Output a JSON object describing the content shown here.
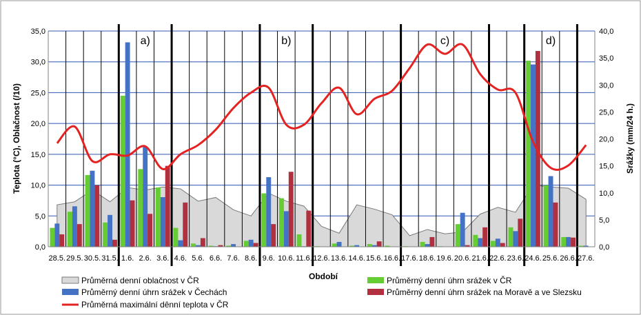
{
  "chart_data": {
    "type": "bar",
    "title": "",
    "xlabel": "Období",
    "ylabel_left": "Teplota (°C), Oblačnost (/10)",
    "ylabel_right": "Srážky (mm/24 h.)",
    "ylim_left": [
      0,
      35
    ],
    "ylim_right": [
      0,
      40
    ],
    "yticks_left": [
      "0,0",
      "5,0",
      "10,0",
      "15,0",
      "20,0",
      "25,0",
      "30,0",
      "35,0"
    ],
    "yticks_right": [
      "0,0",
      "5,0",
      "10,0",
      "15,0",
      "20,0",
      "25,0",
      "30,0",
      "35,0",
      "40,0"
    ],
    "grid": true,
    "legend_position": "bottom",
    "categories": [
      "28.5.",
      "29.5.",
      "30.5.",
      "31.5.",
      "1.6.",
      "2.6.",
      "3.6.",
      "4.6.",
      "5.6.",
      "6.6.",
      "7.6.",
      "8.6.",
      "9.6.",
      "10.6.",
      "11.6.",
      "12.6.",
      "13.6.",
      "14.6.",
      "15.6.",
      "16.6.",
      "17.6.",
      "18.6.",
      "19.6.",
      "20.6.",
      "21.6.",
      "22.6.",
      "23.6.",
      "24.6.",
      "25.6.",
      "26.6.",
      "27.6."
    ],
    "series": [
      {
        "name": "Průměrná denní oblačnost v ČR",
        "kind": "area",
        "axis": "left",
        "color": "#d9d9d9",
        "values": [
          6.8,
          7.3,
          9.2,
          7.3,
          9.6,
          9.2,
          9.7,
          9.4,
          7.4,
          8.0,
          6.0,
          5.0,
          8.7,
          7.4,
          6.6,
          3.3,
          2.2,
          6.8,
          6.1,
          5.2,
          1.8,
          2.8,
          2.1,
          2.4,
          5.3,
          6.4,
          5.6,
          10.0,
          9.7,
          9.5,
          7.7
        ]
      },
      {
        "name": "Průměrný denní úhrn srážek v ČR",
        "kind": "bar",
        "axis": "right",
        "color": "#66cc33",
        "values": [
          3.5,
          6.5,
          13.3,
          4.5,
          28.0,
          14.4,
          11.0,
          3.5,
          0.6,
          0.2,
          0.2,
          1.1,
          9.9,
          9.0,
          2.3,
          0.1,
          0.6,
          0.2,
          0.5,
          0.2,
          0.1,
          0.9,
          0.1,
          4.2,
          2.2,
          1.1,
          3.6,
          34.5,
          11.4,
          1.8,
          0.2
        ]
      },
      {
        "name": "Průměrný denní úhrn srážek v Čechách",
        "kind": "bar",
        "axis": "right",
        "color": "#4472c4",
        "values": [
          4.3,
          7.5,
          14.1,
          5.9,
          37.9,
          18.5,
          9.2,
          1.2,
          0.3,
          0.1,
          0.5,
          1.3,
          12.9,
          6.6,
          0.1,
          0.0,
          0.9,
          0.3,
          0.3,
          0.0,
          0.0,
          0.5,
          0.0,
          6.3,
          1.6,
          1.5,
          2.9,
          33.8,
          13.1,
          1.8,
          0.2
        ]
      },
      {
        "name": "Průměrný denní úhrn srážek na Moravě a ve Slezsku",
        "kind": "bar",
        "axis": "right",
        "color": "#b03040",
        "values": [
          2.3,
          4.2,
          11.4,
          1.3,
          8.6,
          6.1,
          15.0,
          8.2,
          1.6,
          0.3,
          0.0,
          0.7,
          4.2,
          13.9,
          6.7,
          0.0,
          0.0,
          0.0,
          1.0,
          0.0,
          0.0,
          1.8,
          0.0,
          0.3,
          3.6,
          0.7,
          5.2,
          36.3,
          8.2,
          1.7,
          0.0
        ]
      },
      {
        "name": "Průměrná maximální dênní teplota v ČR",
        "kind": "line",
        "axis": "left",
        "color": "#e52222",
        "values": [
          16.8,
          19.5,
          13.9,
          15.0,
          14.8,
          16.3,
          12.6,
          15.0,
          16.5,
          19.0,
          22.5,
          25.0,
          25.8,
          19.8,
          19.8,
          23.3,
          25.8,
          21.5,
          24.0,
          25.3,
          29.0,
          32.8,
          31.3,
          32.8,
          28.0,
          25.5,
          25.0,
          17.0,
          12.8,
          13.2,
          16.5
        ]
      }
    ],
    "periods": [
      "a)",
      "b)",
      "c)",
      "d)"
    ]
  }
}
